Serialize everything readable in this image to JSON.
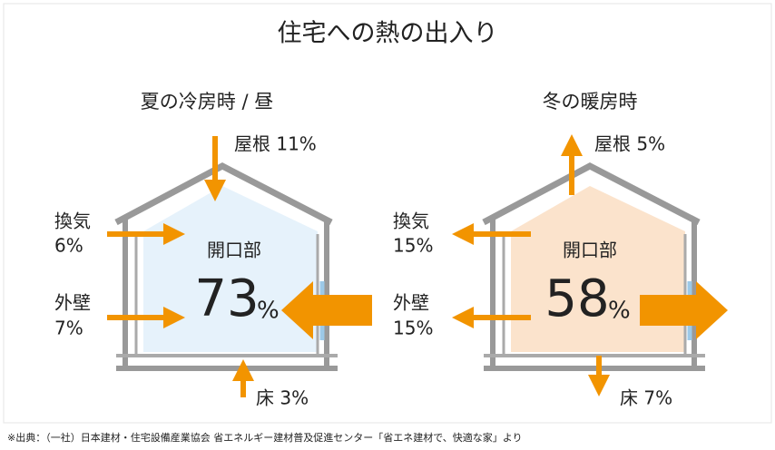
{
  "title": "住宅への熱の出入り",
  "summer": {
    "heading": "夏の冷房時 / 昼",
    "roof": "屋根 11%",
    "ventilation": {
      "label": "換気",
      "value": "6%"
    },
    "wall": {
      "label": "外壁",
      "value": "7%"
    },
    "floor": "床 3%",
    "opening": {
      "label": "開口部",
      "value": "73",
      "unit": "%"
    }
  },
  "winter": {
    "heading": "冬の暖房時",
    "roof": "屋根 5%",
    "ventilation": {
      "label": "換気",
      "value": "15%"
    },
    "wall": {
      "label": "外壁",
      "value": "15%"
    },
    "floor": "床 7%",
    "opening": {
      "label": "開口部",
      "value": "58",
      "unit": "%"
    }
  },
  "source": "※出典：（一社）日本建材・住宅設備産業協会 省エネルギー建材普及促進センター「省エネ建材で、快適な家」より"
}
